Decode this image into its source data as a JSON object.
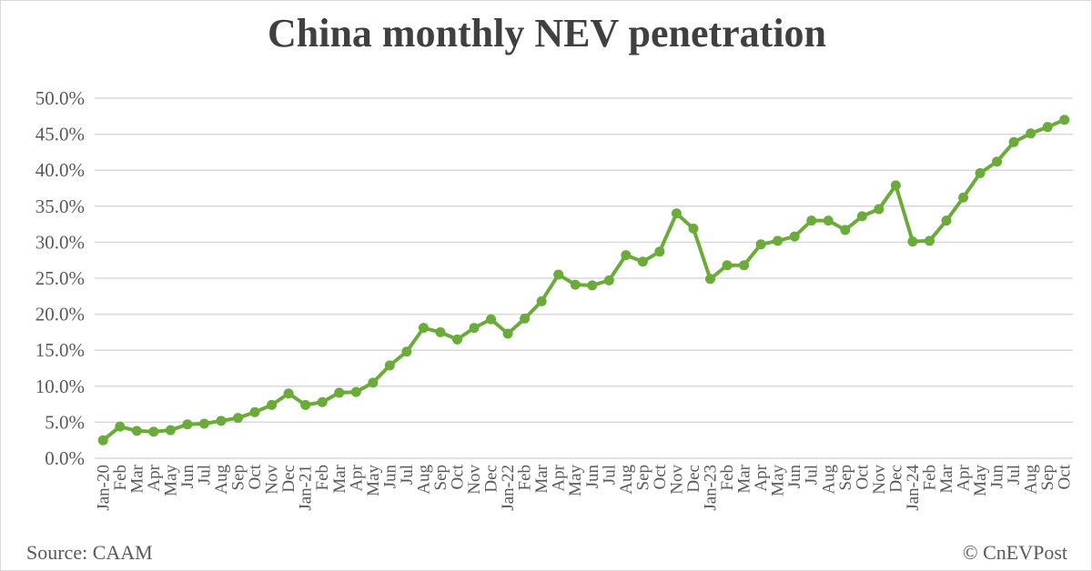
{
  "chart_data": {
    "type": "line",
    "title": "China monthly NEV penetration",
    "xlabel": "",
    "ylabel": "",
    "ylim": [
      0,
      50
    ],
    "yticks": [
      "0.0%",
      "5.0%",
      "10.0%",
      "15.0%",
      "20.0%",
      "25.0%",
      "30.0%",
      "35.0%",
      "40.0%",
      "45.0%",
      "50.0%"
    ],
    "grid": "horizontal",
    "legend": "none",
    "line_color": "#6aab3a",
    "categories": [
      "Jan-20",
      "Feb",
      "Mar",
      "Apr",
      "May",
      "Jun",
      "Jul",
      "Aug",
      "Sep",
      "Oct",
      "Nov",
      "Dec",
      "Jan-21",
      "Feb",
      "Mar",
      "Apr",
      "May",
      "Jun",
      "Jul",
      "Aug",
      "Sep",
      "Oct",
      "Nov",
      "Dec",
      "Jan-22",
      "Feb",
      "Mar",
      "Apr",
      "May",
      "Jun",
      "Jul",
      "Aug",
      "Sep",
      "Oct",
      "Nov",
      "Dec",
      "Jan-23",
      "Feb",
      "Mar",
      "Apr",
      "May",
      "Jun",
      "Jul",
      "Aug",
      "Sep",
      "Oct",
      "Nov",
      "Dec",
      "Jan-24",
      "Feb",
      "Mar",
      "Apr",
      "May",
      "Jun",
      "Jul",
      "Aug",
      "Sep",
      "Oct"
    ],
    "values": [
      2.5,
      4.4,
      3.8,
      3.7,
      3.9,
      4.7,
      4.8,
      5.2,
      5.6,
      6.4,
      7.4,
      9.0,
      7.4,
      7.8,
      9.1,
      9.2,
      10.5,
      12.9,
      14.8,
      18.1,
      17.5,
      16.5,
      18.1,
      19.3,
      17.3,
      19.4,
      21.8,
      25.5,
      24.1,
      24.0,
      24.7,
      28.2,
      27.3,
      28.7,
      34.0,
      31.9,
      24.9,
      26.8,
      26.8,
      29.7,
      30.2,
      30.8,
      33.0,
      33.0,
      31.7,
      33.6,
      34.6,
      37.9,
      30.1,
      30.2,
      33.0,
      36.2,
      39.6,
      41.2,
      43.9,
      45.1,
      46.0,
      47.0
    ]
  },
  "footer": {
    "source": "Source: CAAM",
    "credit": "© CnEVPost"
  }
}
